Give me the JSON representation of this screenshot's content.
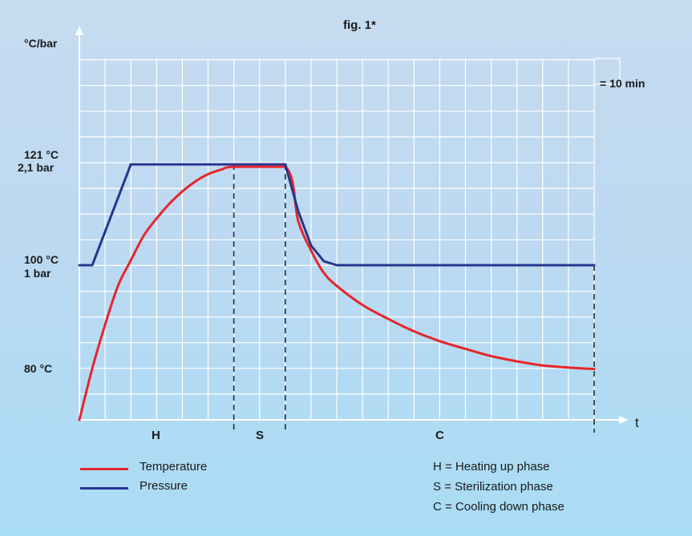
{
  "chart_data": {
    "type": "line",
    "title": "fig. 1*",
    "ylabel": "°C/bar",
    "xlabel": "t",
    "grid": true,
    "grid_unit_label": "= 10 min",
    "y_tick_labels": [
      {
        "value": 121,
        "lines": [
          "121 °C",
          "2,1 bar"
        ]
      },
      {
        "value": 100,
        "lines": [
          "100 °C",
          "1 bar"
        ]
      },
      {
        "value": 80,
        "lines": [
          "80 °C"
        ]
      }
    ],
    "phases": [
      {
        "label": "H",
        "start": 0,
        "end": 60
      },
      {
        "label": "S",
        "start": 60,
        "end": 80
      },
      {
        "label": "C",
        "start": 80,
        "end": 200
      }
    ],
    "series": [
      {
        "name": "Temperature",
        "color": "#e5262b",
        "points": [
          [
            0,
            70
          ],
          [
            5,
            80
          ],
          [
            10,
            88.5
          ],
          [
            15,
            96
          ],
          [
            20,
            101
          ],
          [
            25,
            106
          ],
          [
            30,
            109.5
          ],
          [
            35,
            112.5
          ],
          [
            40,
            115
          ],
          [
            45,
            117
          ],
          [
            50,
            118.5
          ],
          [
            55,
            119.4
          ],
          [
            60,
            120
          ],
          [
            80,
            120
          ],
          [
            85,
            109
          ],
          [
            90,
            103
          ],
          [
            95,
            98.5
          ],
          [
            100,
            96
          ],
          [
            110,
            92.3
          ],
          [
            120,
            89.6
          ],
          [
            130,
            87.2
          ],
          [
            140,
            85.3
          ],
          [
            150,
            83.8
          ],
          [
            160,
            82.4
          ],
          [
            170,
            81.4
          ],
          [
            180,
            80.6
          ],
          [
            190,
            80.2
          ],
          [
            200,
            79.9
          ]
        ]
      },
      {
        "name": "Pressure",
        "color": "#27358e",
        "points": [
          [
            0,
            100
          ],
          [
            5,
            100
          ],
          [
            20,
            120.5
          ],
          [
            80,
            120.5
          ],
          [
            85,
            111
          ],
          [
            90,
            104
          ],
          [
            95,
            100.8
          ],
          [
            100,
            100
          ],
          [
            200,
            100
          ]
        ]
      }
    ]
  },
  "legend": {
    "temperature": "Temperature",
    "pressure": "Pressure",
    "phase_notes": [
      "H = Heating up phase",
      "S = Sterilization phase",
      "C = Cooling down phase"
    ]
  }
}
